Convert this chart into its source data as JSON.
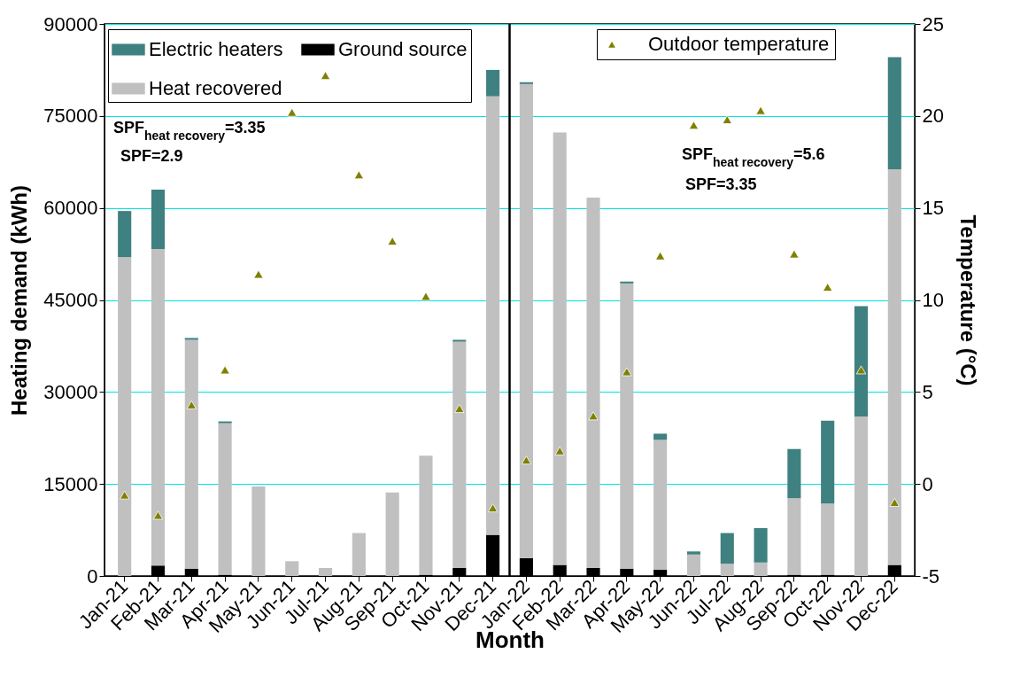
{
  "chart_data": {
    "type": "bar",
    "stacked": true,
    "xlabel": "Month",
    "ylabel": "Heating demand (kWh)",
    "y2label": "Temperature (°C)",
    "categories": [
      "Jan-21",
      "Feb-21",
      "Mar-21",
      "Apr-21",
      "May-21",
      "Jun-21",
      "Jul-21",
      "Aug-21",
      "Sep-21",
      "Oct-21",
      "Nov-21",
      "Dec-21",
      "Jan-22",
      "Feb-22",
      "Mar-22",
      "Apr-22",
      "May-22",
      "Jun-22",
      "Jul-22",
      "Aug-22",
      "Sep-22",
      "Oct-22",
      "Nov-22",
      "Dec-22"
    ],
    "series": [
      {
        "name": "Ground source",
        "color": "#000000",
        "values": [
          0,
          1700,
          1200,
          200,
          0,
          0,
          0,
          0,
          0,
          200,
          1300,
          6700,
          2900,
          1800,
          1300,
          1200,
          1000,
          0,
          0,
          0,
          200,
          200,
          0,
          1800
        ]
      },
      {
        "name": "Heat recovered",
        "color": "#c0c0c0",
        "values": [
          52000,
          51600,
          37300,
          24700,
          14600,
          2400,
          1300,
          7000,
          13600,
          19400,
          36900,
          71500,
          77300,
          70500,
          60400,
          46500,
          21200,
          3500,
          2000,
          2200,
          12500,
          11600,
          26000,
          64500
        ]
      },
      {
        "name": "Electric heaters",
        "color": "#3f8080",
        "values": [
          7500,
          9700,
          300,
          300,
          0,
          0,
          0,
          0,
          0,
          0,
          300,
          4300,
          300,
          0,
          0,
          300,
          1000,
          500,
          5000,
          5600,
          8000,
          13500,
          18000,
          18300
        ]
      },
      {
        "name": "Outdoor temperature",
        "type": "scatter",
        "axis": "y2",
        "marker": "triangle",
        "color": "#808000",
        "values": [
          -0.6,
          -1.7,
          4.3,
          6.2,
          11.4,
          20.2,
          22.2,
          16.8,
          13.2,
          10.2,
          4.1,
          -1.3,
          1.3,
          1.8,
          3.7,
          6.1,
          12.4,
          19.5,
          19.8,
          20.3,
          12.5,
          10.7,
          6.2,
          -1.0
        ]
      }
    ],
    "ylim": [
      0,
      90000
    ],
    "yticks": [
      0,
      15000,
      30000,
      45000,
      60000,
      75000,
      90000
    ],
    "y2lim": [
      -5,
      25
    ],
    "y2ticks": [
      -5,
      0,
      5,
      10,
      15,
      20,
      25
    ],
    "grid": "y",
    "legend": "top",
    "ref_lines": [
      {
        "axis": "x",
        "value": "Jan-22",
        "color": "#000000"
      }
    ],
    "annotations": [
      "SPF$_{heat recovery}$=3.35",
      "SPF=2.9",
      "SPF$_{heat recovery}$=5.6",
      "SPF=3.35"
    ]
  }
}
